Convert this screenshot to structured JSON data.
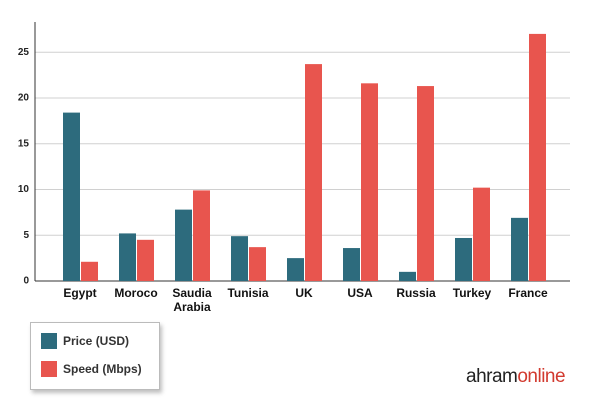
{
  "chart_data": {
    "type": "bar",
    "categories": [
      "Egypt",
      "Moroco",
      "Saudia Arabia",
      "Tunisia",
      "UK",
      "USA",
      "Russia",
      "Turkey",
      "France"
    ],
    "series": [
      {
        "name": "Price (USD)",
        "color": "#2d6b7d",
        "values": [
          18.4,
          5.2,
          7.8,
          4.9,
          2.5,
          3.6,
          1.0,
          4.7,
          6.9
        ]
      },
      {
        "name": "Speed (Mbps)",
        "color": "#e8554e",
        "values": [
          2.1,
          4.5,
          9.9,
          3.7,
          23.7,
          21.6,
          21.3,
          10.2,
          27.0
        ]
      }
    ],
    "ylim": [
      0,
      28.3
    ],
    "yticks": [
      0,
      5,
      10,
      15,
      20,
      25
    ],
    "grid": true,
    "logo": [
      "ahram",
      "online"
    ],
    "logo_colors": [
      "#222222",
      "#d23a2f"
    ]
  }
}
